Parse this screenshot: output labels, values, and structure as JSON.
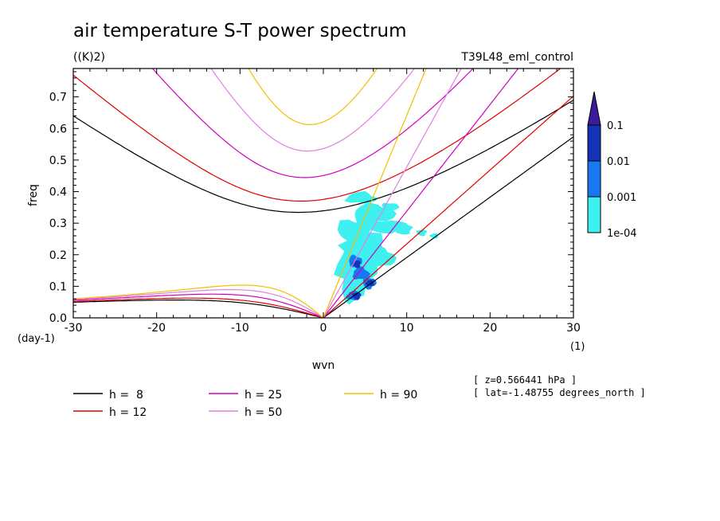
{
  "chart_data": {
    "type": "contour",
    "title": "air temperature S-T power spectrum",
    "units": "((K)2)",
    "experiment": "T39L48_eml_control",
    "xlabel": "wvn",
    "ylabel": "freq",
    "x_unit": "(1)",
    "y_unit": "(day-1)",
    "xlim": [
      -30,
      30
    ],
    "ylim": [
      0,
      0.79
    ],
    "x_ticks": [
      -30,
      -20,
      -10,
      0,
      10,
      20,
      30
    ],
    "x_tick_labels": [
      "-30",
      "-20",
      "-10",
      "0",
      "10",
      "20",
      "30"
    ],
    "y_ticks": [
      0,
      0.1,
      0.2,
      0.3,
      0.4,
      0.5,
      0.6,
      0.7
    ],
    "y_tick_labels": [
      "0.0",
      "0.1",
      "0.2",
      "0.3",
      "0.4",
      "0.5",
      "0.6",
      "0.7"
    ],
    "colorbar": {
      "levels": [
        "0.1",
        "0.01",
        "0.001",
        "1e-04"
      ],
      "colors": [
        "#3c1a9c",
        "#1433b8",
        "#1878f0",
        "#3ff0f0"
      ]
    },
    "annotations": [
      "[ z=0.566441 hPa ]",
      "[ lat=-1.48755 degrees_north ]"
    ],
    "dispersion_curves": [
      {
        "label": "h =  8",
        "h": 8,
        "color": "#000000"
      },
      {
        "label": "h = 12",
        "h": 12,
        "color": "#e00000"
      },
      {
        "label": "h = 25",
        "h": 25,
        "color": "#d000c0"
      },
      {
        "label": "h = 50",
        "h": 50,
        "color": "#e080e0"
      },
      {
        "label": "h = 90",
        "h": 90,
        "color": "#f0c000"
      }
    ],
    "spectrum_patches": [
      {
        "x": 4.5,
        "y": 0.38,
        "rx": 1.8,
        "ry": 0.018,
        "level": 3
      },
      {
        "x": 6.0,
        "y": 0.33,
        "rx": 2.5,
        "ry": 0.03,
        "level": 3
      },
      {
        "x": 3.5,
        "y": 0.28,
        "rx": 2.0,
        "ry": 0.03,
        "level": 3
      },
      {
        "x": 7.5,
        "y": 0.29,
        "rx": 2.5,
        "ry": 0.02,
        "level": 3
      },
      {
        "x": 9.5,
        "y": 0.28,
        "rx": 1.2,
        "ry": 0.015,
        "level": 3
      },
      {
        "x": 5.0,
        "y": 0.23,
        "rx": 2.6,
        "ry": 0.04,
        "level": 3
      },
      {
        "x": 4.0,
        "y": 0.17,
        "rx": 2.4,
        "ry": 0.06,
        "level": 3
      },
      {
        "x": 7.0,
        "y": 0.19,
        "rx": 1.6,
        "ry": 0.03,
        "level": 3
      },
      {
        "x": 3.5,
        "y": 0.09,
        "rx": 1.4,
        "ry": 0.04,
        "level": 3
      },
      {
        "x": 8.0,
        "y": 0.35,
        "rx": 1.0,
        "ry": 0.015,
        "level": 3
      },
      {
        "x": 11.8,
        "y": 0.27,
        "rx": 0.6,
        "ry": 0.01,
        "level": 3
      },
      {
        "x": 13.3,
        "y": 0.26,
        "rx": 0.5,
        "ry": 0.008,
        "level": 3
      },
      {
        "x": 3.6,
        "y": 0.07,
        "rx": 0.8,
        "ry": 0.015,
        "level": 2
      },
      {
        "x": 4.5,
        "y": 0.14,
        "rx": 1.0,
        "ry": 0.02,
        "level": 2
      },
      {
        "x": 3.8,
        "y": 0.18,
        "rx": 0.8,
        "ry": 0.018,
        "level": 2
      },
      {
        "x": 5.5,
        "y": 0.11,
        "rx": 0.8,
        "ry": 0.018,
        "level": 2
      },
      {
        "x": 4.0,
        "y": 0.07,
        "rx": 0.5,
        "ry": 0.012,
        "level": 1
      },
      {
        "x": 4.0,
        "y": 0.17,
        "rx": 0.5,
        "ry": 0.012,
        "level": 1
      },
      {
        "x": 5.6,
        "y": 0.11,
        "rx": 0.5,
        "ry": 0.01,
        "level": 1
      }
    ]
  }
}
